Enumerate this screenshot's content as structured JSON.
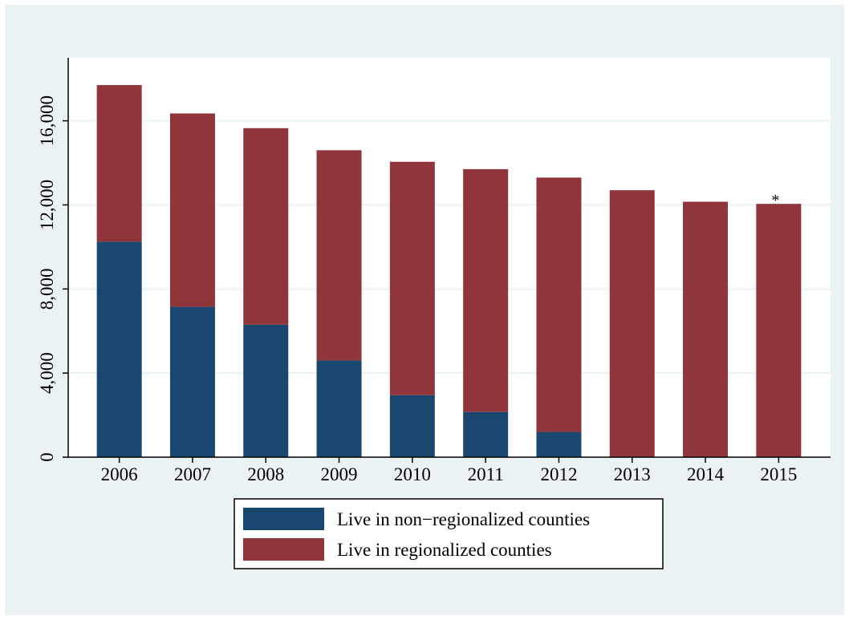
{
  "chart_data": {
    "type": "stacked-bar",
    "categories": [
      "2006",
      "2007",
      "2008",
      "2009",
      "2010",
      "2011",
      "2012",
      "2013",
      "2014",
      "2015"
    ],
    "series": [
      {
        "name": "Live in non−regionalized counties",
        "color": "#1a476f",
        "values": [
          10250,
          7150,
          6300,
          4600,
          2950,
          2150,
          1200,
          0,
          0,
          0
        ]
      },
      {
        "name": "Live in regionalized counties",
        "color": "#90353b",
        "values": [
          7450,
          9200,
          9350,
          10000,
          11100,
          11550,
          12100,
          12700,
          12150,
          12050
        ]
      }
    ],
    "ylim": [
      0,
      19000
    ],
    "yticks": [
      0,
      {
        "value": 4000,
        "label": "4,000"
      },
      {
        "value": 8000,
        "label": "8,000"
      },
      {
        "value": 12000,
        "label": "12,000"
      },
      {
        "value": 16000,
        "label": "16,000"
      }
    ],
    "grid": true,
    "annotations": [
      {
        "text": "*",
        "category": "2015"
      }
    ],
    "legend_position": "bottom"
  }
}
